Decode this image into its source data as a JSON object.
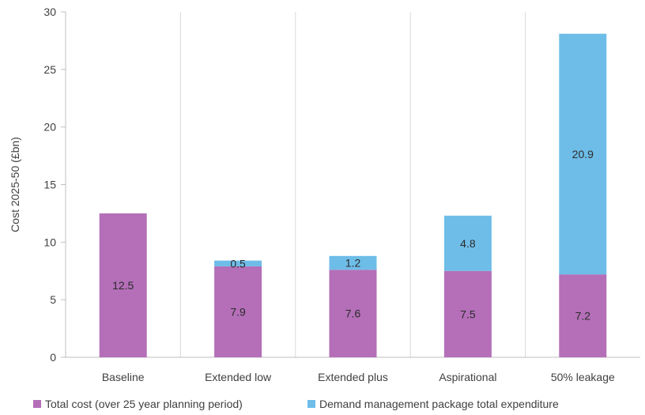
{
  "chart_data": {
    "type": "bar",
    "stacked": true,
    "categories": [
      "Baseline",
      "Extended low",
      "Extended plus",
      "Aspirational",
      "50% leakage"
    ],
    "series": [
      {
        "name": "Total cost (over 25 year planning period)",
        "values": [
          12.5,
          7.9,
          7.6,
          7.5,
          7.2
        ],
        "color": "#b46fb8"
      },
      {
        "name": "Demand management package total expenditure",
        "values": [
          0,
          0.5,
          1.2,
          4.8,
          20.9
        ],
        "color": "#6ebde8"
      }
    ],
    "data_labels": [
      [
        "12.5",
        "7.9",
        "7.6",
        "7.5",
        "7.2"
      ],
      [
        "",
        "0.5",
        "1.2",
        "4.8",
        "20.9"
      ]
    ],
    "ylabel": "Cost 2025-50 (£bn)",
    "xlabel": "",
    "ylim": [
      0,
      30
    ],
    "yticks": [
      0,
      5,
      10,
      15,
      20,
      25,
      30
    ],
    "grid": "vertical separators between categories",
    "legend": "bottom"
  }
}
